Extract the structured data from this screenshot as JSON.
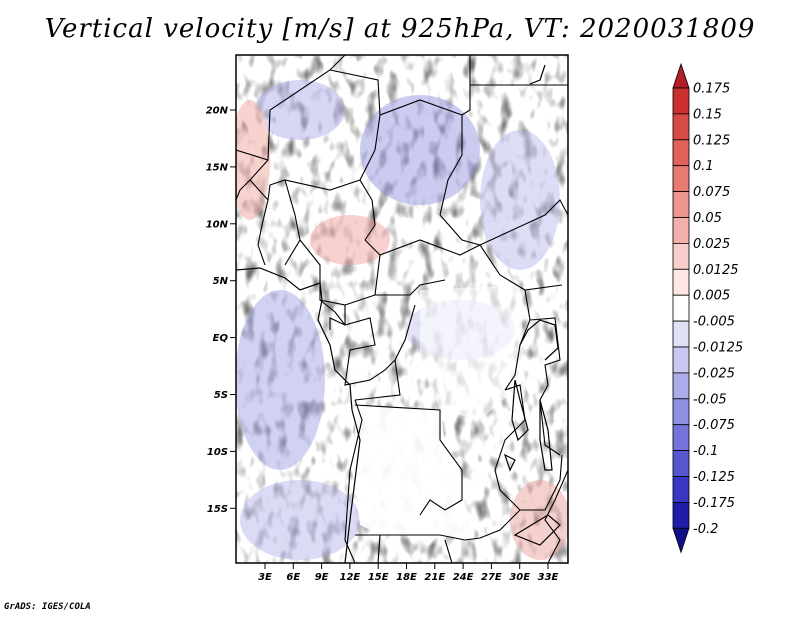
{
  "title": "Vertical velocity [m/s] at 925hPa, VT: 2020031809",
  "footer": "GrADS: IGES/COLA",
  "map": {
    "lat_labels": [
      "20N",
      "15N",
      "10N",
      "5N",
      "EQ",
      "5S",
      "10S",
      "15S"
    ],
    "lon_labels": [
      "3E",
      "6E",
      "9E",
      "12E",
      "15E",
      "18E",
      "21E",
      "24E",
      "27E",
      "30E",
      "33E"
    ]
  },
  "colorbar": {
    "labels": [
      "0.175",
      "0.15",
      "0.125",
      "0.1",
      "0.075",
      "0.05",
      "0.025",
      "0.0125",
      "0.005",
      "-0.005",
      "-0.0125",
      "-0.025",
      "-0.05",
      "-0.075",
      "-0.1",
      "-0.125",
      "-0.175",
      "-0.2"
    ],
    "colors": [
      "#b41e26",
      "#c9302f",
      "#d84b44",
      "#e0625a",
      "#e77b72",
      "#ee958d",
      "#f4b0aa",
      "#f9cdc9",
      "#fde6e4",
      "#ffffff",
      "#e1e1f6",
      "#c8c8f0",
      "#acacea",
      "#9090e2",
      "#7474da",
      "#5656cf",
      "#3838c3",
      "#1e1ea8",
      "#10108a"
    ]
  }
}
